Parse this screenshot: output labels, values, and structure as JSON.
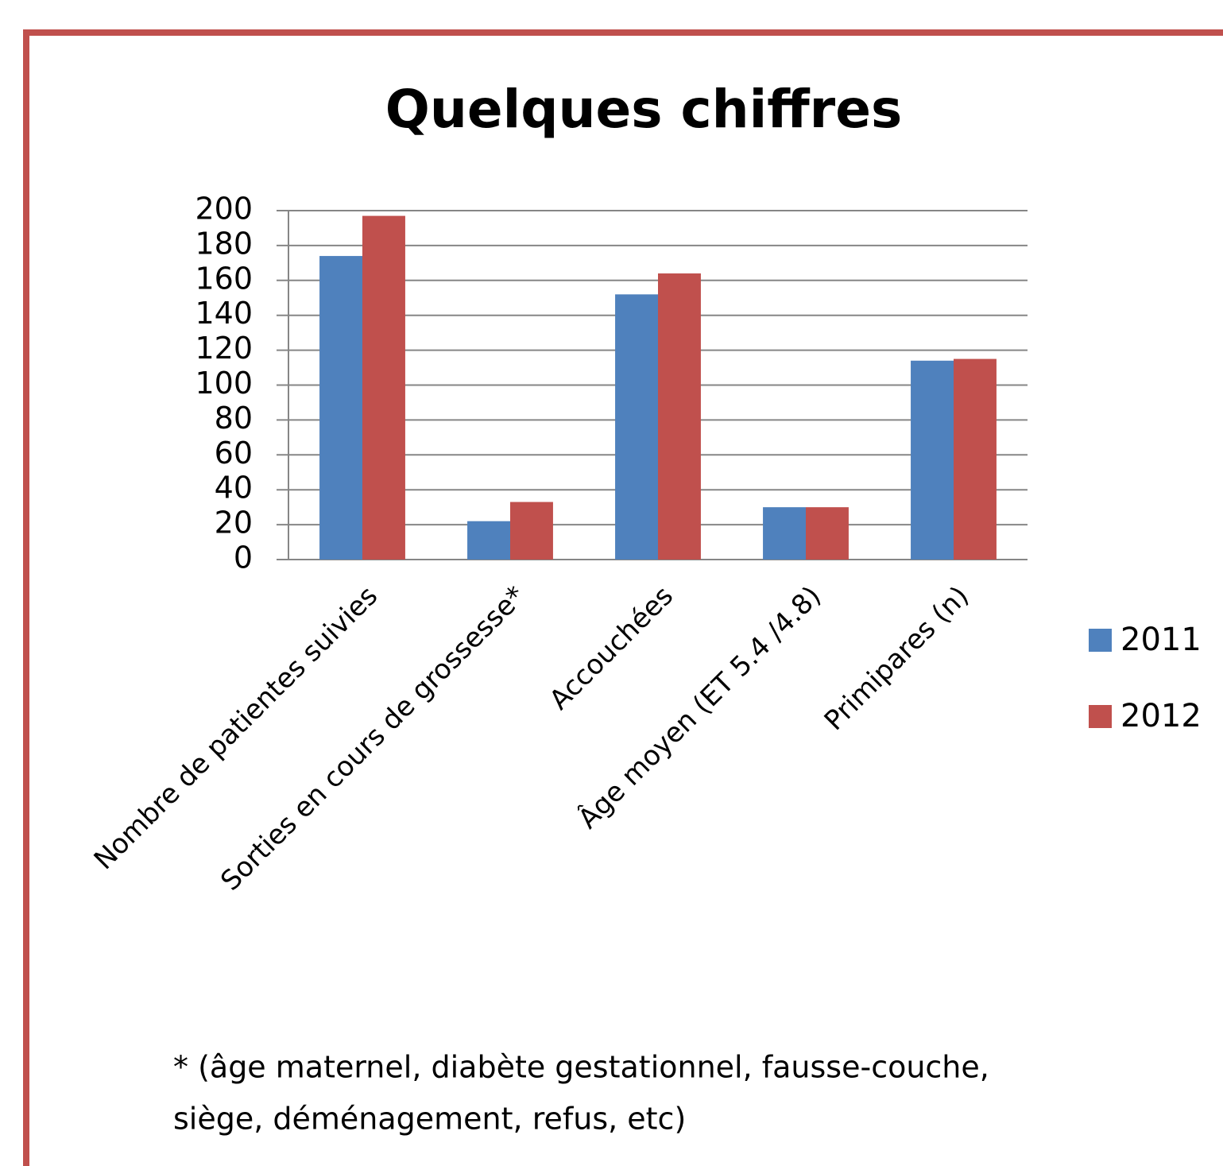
{
  "chart_data": {
    "type": "bar",
    "title": "Quelques chiffres",
    "categories": [
      "Nombre de patientes suivies",
      "Sorties en cours de grossesse*",
      "Accouchées",
      "Âge moyen (ET 5.4 /4.8)",
      "Primipares (n)"
    ],
    "series": [
      {
        "name": "2011",
        "color": "#4f81bd",
        "values": [
          174,
          22,
          152,
          30,
          114
        ]
      },
      {
        "name": "2012",
        "color": "#c0504d",
        "values": [
          197,
          33,
          164,
          30,
          115
        ]
      }
    ],
    "ylim": [
      0,
      200
    ],
    "yticks": [
      0,
      20,
      40,
      60,
      80,
      100,
      120,
      140,
      160,
      180,
      200
    ],
    "grid": true,
    "legend": "right",
    "footnote": [
      "* (âge maternel, diabète gestationnel, fausse-couche,",
      "siège, déménagement, refus, etc)"
    ]
  }
}
